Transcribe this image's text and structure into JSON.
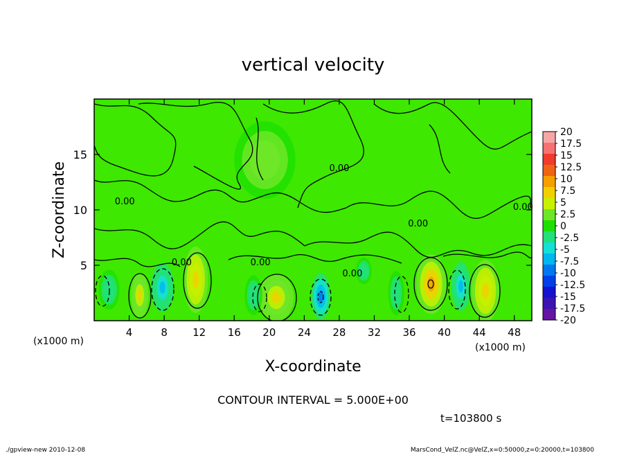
{
  "chart_data": {
    "type": "heatmap",
    "title": "vertical velocity",
    "xlabel": "X-coordinate",
    "ylabel": "Z-coordinate",
    "x_unit_left": "(x1000 m)",
    "x_unit_right": "(x1000 m)",
    "xlim": [
      0,
      50000
    ],
    "ylim": [
      0,
      20000
    ],
    "x_ticks": [
      {
        "value": 4000,
        "label": "4"
      },
      {
        "value": 8000,
        "label": "8"
      },
      {
        "value": 12000,
        "label": "12"
      },
      {
        "value": 16000,
        "label": "16"
      },
      {
        "value": 20000,
        "label": "20"
      },
      {
        "value": 24000,
        "label": "24"
      },
      {
        "value": 28000,
        "label": "28"
      },
      {
        "value": 32000,
        "label": "32"
      },
      {
        "value": 36000,
        "label": "36"
      },
      {
        "value": 40000,
        "label": "40"
      },
      {
        "value": 44000,
        "label": "44"
      },
      {
        "value": 48000,
        "label": "48"
      }
    ],
    "y_ticks": [
      {
        "value": 5000,
        "label": "5"
      },
      {
        "value": 10000,
        "label": "10"
      },
      {
        "value": 15000,
        "label": "15"
      }
    ],
    "contour_interval_text": "CONTOUR INTERVAL = 5.000E+00",
    "time_text": "t=103800 s",
    "contour_labels": [
      {
        "x": 3500,
        "y": 10500,
        "text": "0.00"
      },
      {
        "x": 10000,
        "y": 5000,
        "text": "0.00"
      },
      {
        "x": 19000,
        "y": 5000,
        "text": "0.00"
      },
      {
        "x": 28000,
        "y": 13500,
        "text": "0.00"
      },
      {
        "x": 29500,
        "y": 4000,
        "text": "0.00"
      },
      {
        "x": 37000,
        "y": 8500,
        "text": "0.00"
      },
      {
        "x": 49000,
        "y": 10000,
        "text": "0.00"
      }
    ],
    "cells": [
      {
        "x": 5200,
        "y": 2300,
        "w": 1000,
        "h": 2000,
        "value": 7
      },
      {
        "x": 7800,
        "y": 3000,
        "w": 1300,
        "h": 2200,
        "value": -7
      },
      {
        "x": 11600,
        "y": 3700,
        "w": 1400,
        "h": 3000,
        "value": 7.5
      },
      {
        "x": 20800,
        "y": 2100,
        "w": 2000,
        "h": 2100,
        "value": 7
      },
      {
        "x": 25900,
        "y": 2200,
        "w": 1100,
        "h": 2100,
        "value": -12
      },
      {
        "x": 38500,
        "y": 3300,
        "w": 1700,
        "h": 2700,
        "value": 10
      },
      {
        "x": 41900,
        "y": 3100,
        "w": 1100,
        "h": 2200,
        "value": -7
      },
      {
        "x": 44700,
        "y": 2700,
        "w": 1600,
        "h": 2800,
        "value": 8
      },
      {
        "x": 1700,
        "y": 2800,
        "w": 1200,
        "h": 1800,
        "value": -3
      },
      {
        "x": 34500,
        "y": 2500,
        "w": 900,
        "h": 2000,
        "value": -3
      },
      {
        "x": 18200,
        "y": 2300,
        "w": 1000,
        "h": 1800,
        "value": -3
      },
      {
        "x": 30800,
        "y": 4500,
        "w": 900,
        "h": 1200,
        "value": -4
      },
      {
        "x": 19500,
        "y": 14500,
        "w": 3500,
        "h": 3500,
        "value": 3
      }
    ],
    "colorbar": {
      "labels": [
        "20",
        "17.5",
        "15",
        "12.5",
        "10",
        "7.5",
        "5",
        "2.5",
        "0",
        "-2.5",
        "-5",
        "-7.5",
        "-10",
        "-12.5",
        "-15",
        "-17.5",
        "-20"
      ],
      "colors": [
        "#f7a6a6",
        "#f77272",
        "#f03c2c",
        "#f06414",
        "#f5a000",
        "#f0d000",
        "#c8f000",
        "#6ee628",
        "#1ee000",
        "#22e07a",
        "#14e0d8",
        "#00b8f0",
        "#0078f0",
        "#0040e8",
        "#1414d0",
        "#3c14b4",
        "#6414a0"
      ]
    }
  },
  "footer": {
    "left": "./gpview-new  2010-12-08",
    "right": "MarsCond_VelZ.nc@VelZ,x=0:50000,z=0:20000,t=103800"
  }
}
